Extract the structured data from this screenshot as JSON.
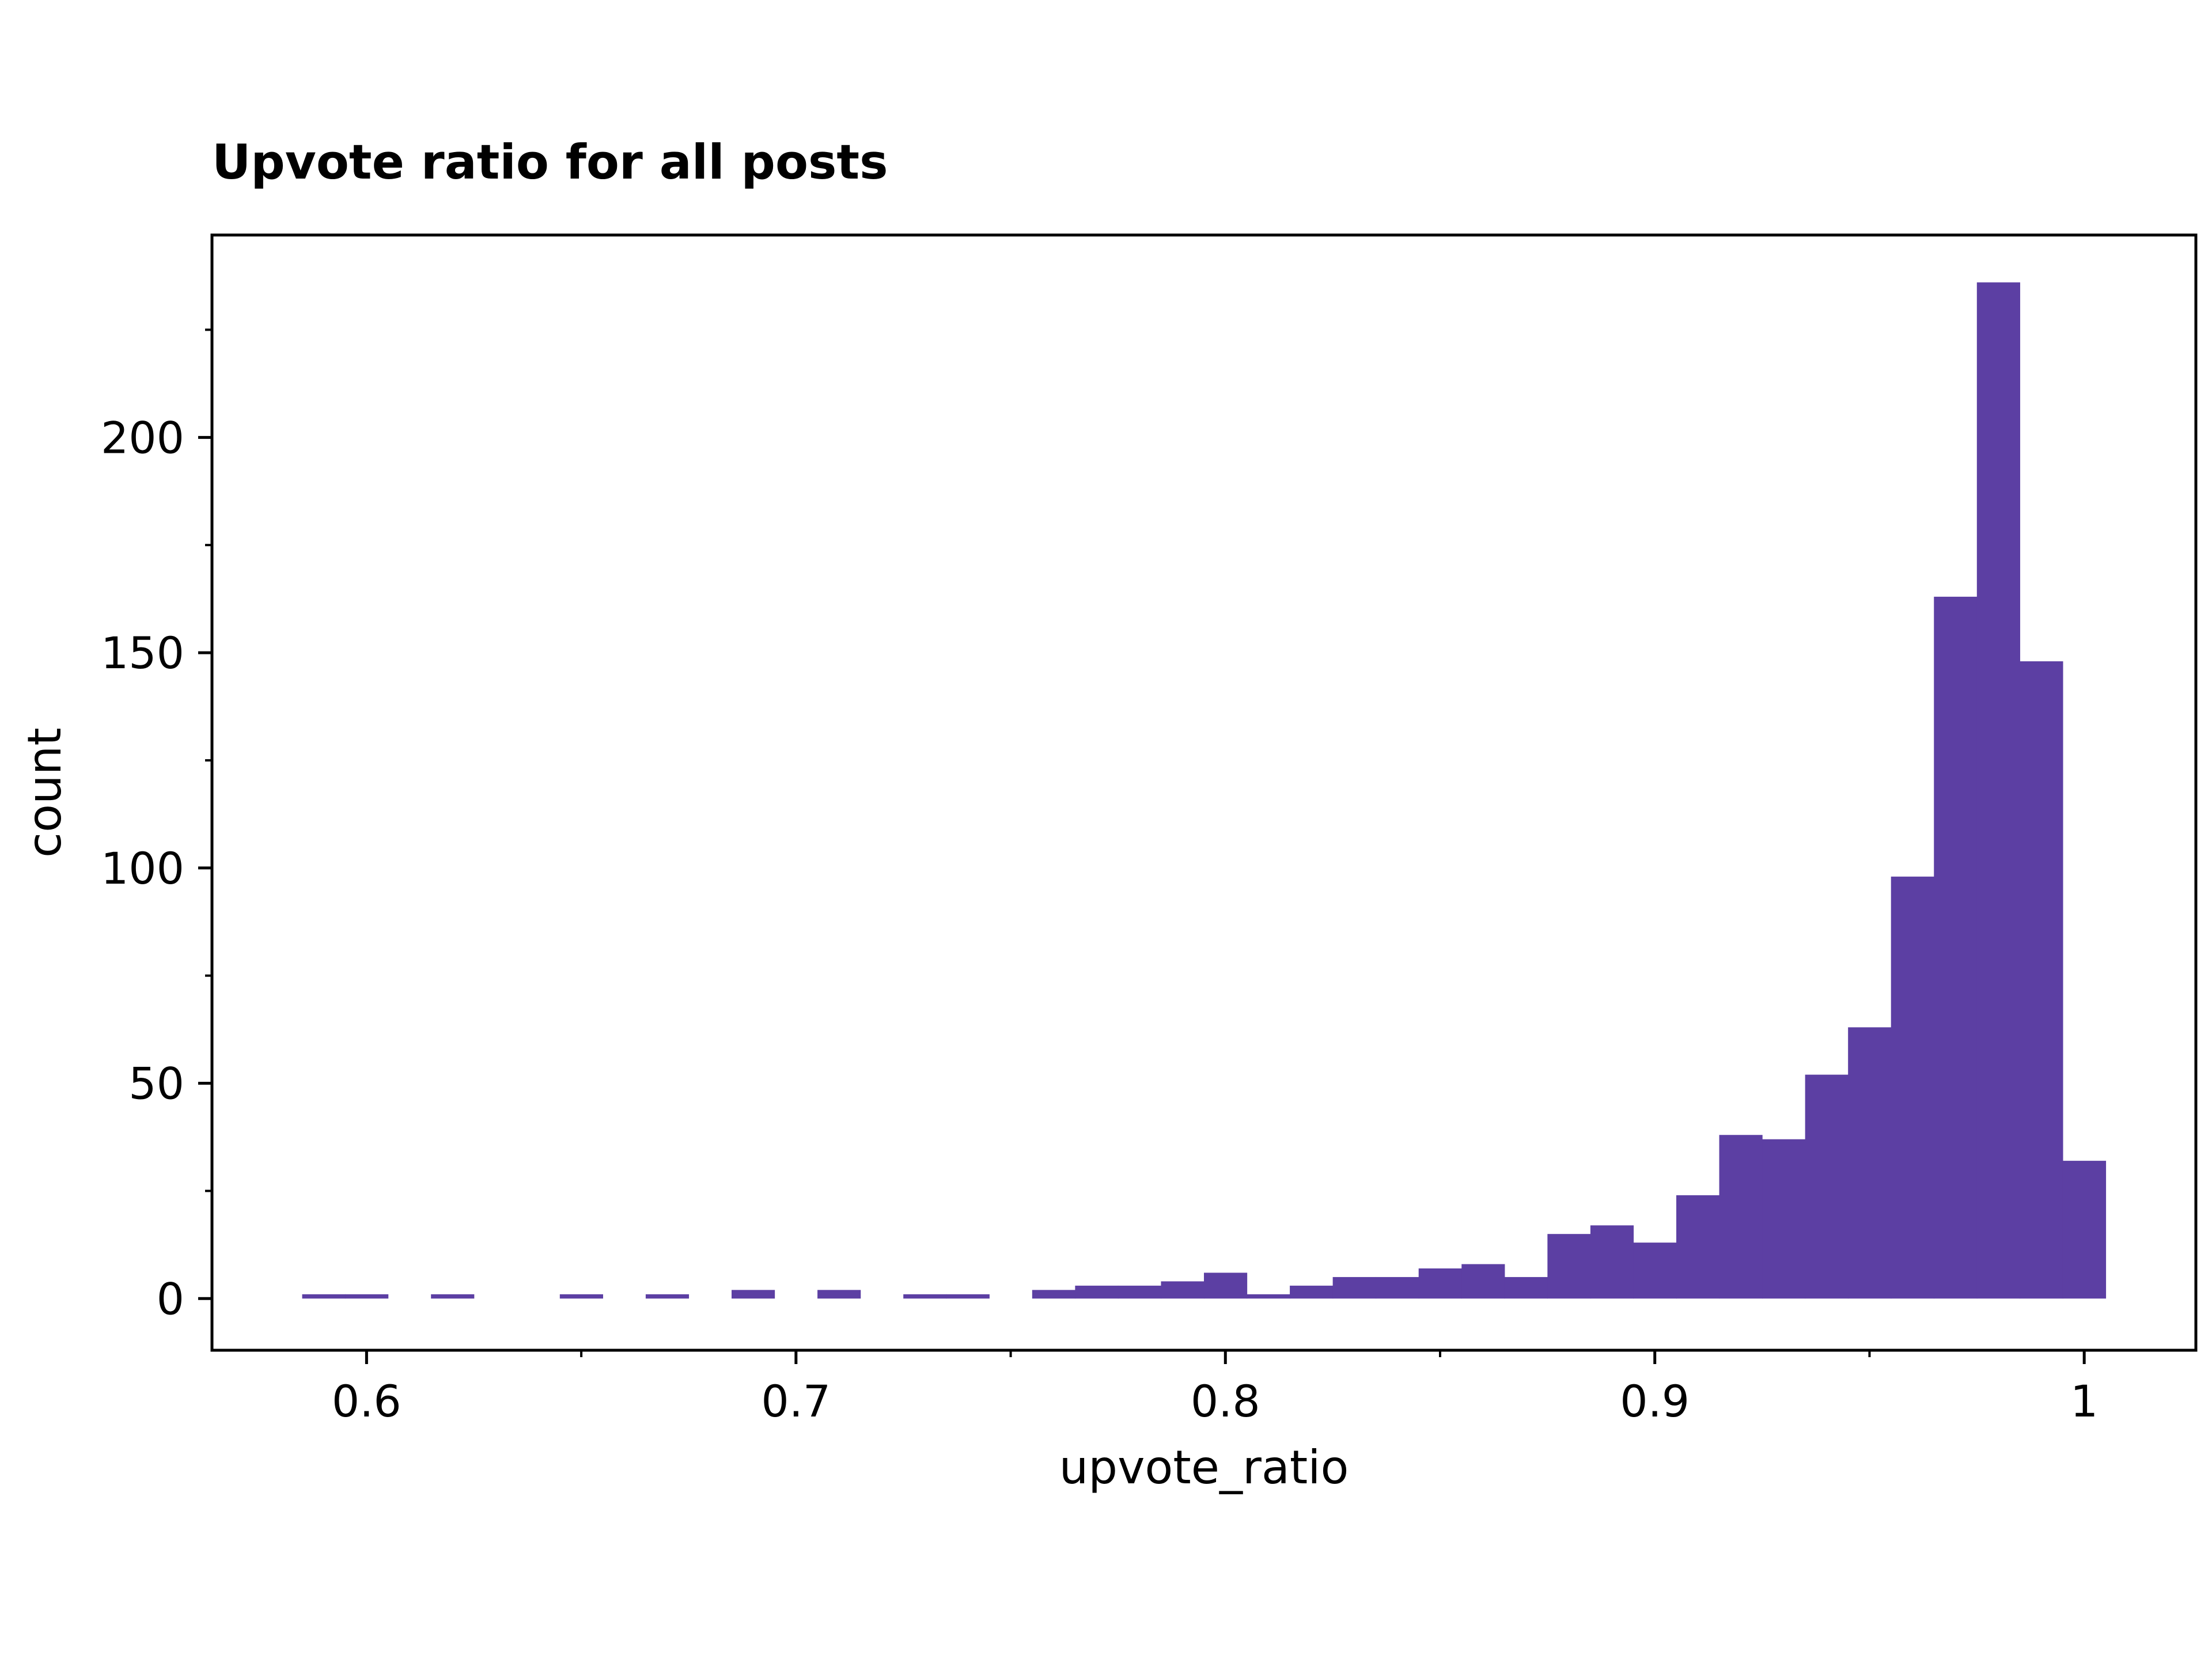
{
  "chart_data": {
    "type": "bar",
    "title": "Upvote ratio for all posts",
    "xlabel": "upvote_ratio",
    "ylabel": "count",
    "xlim": [
      0.564,
      1.026
    ],
    "ylim": [
      -12,
      247
    ],
    "x_ticks": [
      0.6,
      0.7,
      0.8,
      0.9,
      1.0
    ],
    "x_tick_labels": [
      "0.6",
      "0.7",
      "0.8",
      "0.9",
      "1"
    ],
    "y_ticks": [
      0,
      50,
      100,
      150,
      200
    ],
    "y_tick_labels": [
      "0",
      "50",
      "100",
      "150",
      "200"
    ],
    "bin_width": 0.01,
    "bin_start": 0.585,
    "values": [
      1,
      1,
      0,
      1,
      0,
      0,
      1,
      0,
      1,
      0,
      2,
      0,
      2,
      0,
      1,
      1,
      0,
      2,
      3,
      3,
      4,
      6,
      1,
      3,
      5,
      5,
      7,
      8,
      5,
      15,
      17,
      13,
      24,
      38,
      37,
      52,
      63,
      98,
      163,
      236,
      148,
      32
    ],
    "bar_color": "#5c3fa3",
    "grid": false,
    "legend": "none"
  }
}
